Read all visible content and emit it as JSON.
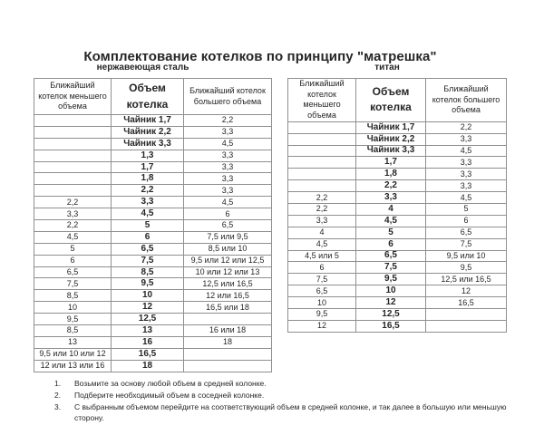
{
  "title": "Комплектование котелков по принципу \"матрешка\"",
  "colors": {
    "border": "#8f8f8f",
    "text": "#262626"
  },
  "tables": [
    {
      "subtitle": "нержавеющая сталь",
      "headers": [
        "Ближайший котелок меньшего объема",
        "Объем котелка",
        "Ближайший котелок большего объема"
      ],
      "rows": [
        [
          "",
          "Чайник 1,7",
          "2,2"
        ],
        [
          "",
          "Чайник 2,2",
          "3,3"
        ],
        [
          "",
          "Чайник 3,3",
          "4,5"
        ],
        [
          "",
          "1,3",
          "3,3"
        ],
        [
          "",
          "1,7",
          "3,3"
        ],
        [
          "",
          "1,8",
          "3,3"
        ],
        [
          "",
          "2,2",
          "3,3"
        ],
        [
          "2,2",
          "3,3",
          "4,5"
        ],
        [
          "3,3",
          "4,5",
          "6"
        ],
        [
          "2,2",
          "5",
          "6,5"
        ],
        [
          "4,5",
          "6",
          "7,5 или 9,5"
        ],
        [
          "5",
          "6,5",
          "8,5 или 10"
        ],
        [
          "6",
          "7,5",
          "9,5 или 12 или 12,5"
        ],
        [
          "6,5",
          "8,5",
          "10 или 12 или 13"
        ],
        [
          "7,5",
          "9,5",
          "12,5 или 16,5"
        ],
        [
          "8,5",
          "10",
          "12 или 16,5"
        ],
        [
          "10",
          "12",
          "16,5 или 18"
        ],
        [
          "9,5",
          "12,5",
          ""
        ],
        [
          "8,5",
          "13",
          "16 или 18"
        ],
        [
          "13",
          "16",
          "18"
        ],
        [
          "9,5 или 10 или 12",
          "16,5",
          ""
        ],
        [
          "12 или 13 или 16",
          "18",
          ""
        ]
      ]
    },
    {
      "subtitle": "титан",
      "headers": [
        "Ближайший котелок меньшего объема",
        "Объем котелка",
        "Ближайший котелок большего объема"
      ],
      "rows": [
        [
          "",
          "Чайник 1,7",
          "2,2"
        ],
        [
          "",
          "Чайник 2,2",
          "3,3"
        ],
        [
          "",
          "Чайник 3,3",
          "4,5"
        ],
        [
          "",
          "1,7",
          "3,3"
        ],
        [
          "",
          "1,8",
          "3,3"
        ],
        [
          "",
          "2,2",
          "3,3"
        ],
        [
          "2,2",
          "3,3",
          "4,5"
        ],
        [
          "2,2",
          "4",
          "5"
        ],
        [
          "3,3",
          "4,5",
          "6"
        ],
        [
          "4",
          "5",
          "6,5"
        ],
        [
          "4,5",
          "6",
          "7,5"
        ],
        [
          "4,5 или 5",
          "6,5",
          "9,5 или 10"
        ],
        [
          "6",
          "7,5",
          "9,5"
        ],
        [
          "7,5",
          "9,5",
          "12,5 или 16,5"
        ],
        [
          "6,5",
          "10",
          "12"
        ],
        [
          "10",
          "12",
          "16,5"
        ],
        [
          "9,5",
          "12,5",
          ""
        ],
        [
          "12",
          "16,5",
          ""
        ]
      ]
    }
  ],
  "notes": [
    {
      "num": "1.",
      "text": "Возьмите за основу любой объем в средней колонке."
    },
    {
      "num": "2.",
      "text": "Подберите необходимый объем в соседней колонке."
    },
    {
      "num": "3.",
      "text": "С выбранным объемом перейдите на соответствующий объем в средней колонке, и так далее в большую или меньшую сторону."
    }
  ]
}
